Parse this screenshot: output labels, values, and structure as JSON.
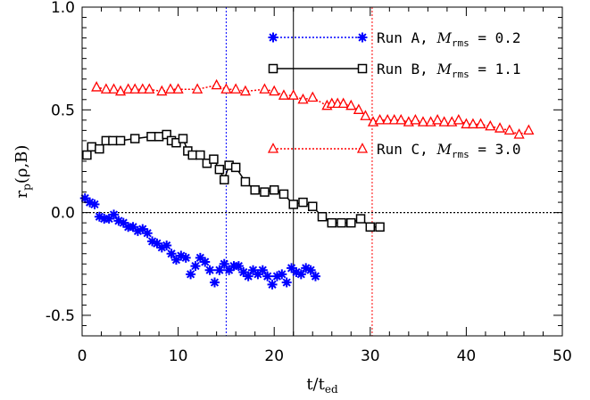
{
  "chart_data": {
    "type": "scatter",
    "title": "",
    "xlabel": {
      "base": "t/t",
      "sub": "ed"
    },
    "ylabel": {
      "base": "r",
      "sub": "p",
      "rest": "(ρ,B)"
    },
    "xlim": [
      0,
      50
    ],
    "ylim": [
      -0.6,
      1.0
    ],
    "xticks": [
      0,
      10,
      20,
      30,
      40,
      50
    ],
    "xtick_labels": [
      "0",
      "10",
      "20",
      "30",
      "40",
      "50"
    ],
    "yticks": [
      -0.5,
      0.0,
      0.5,
      1.0
    ],
    "ytick_labels": [
      "-0.5",
      "0.0",
      "0.5",
      "1.0"
    ],
    "grid": false,
    "legend_placement": "top-right",
    "zero_line": 0.0,
    "vlines": [
      {
        "x": 15.0,
        "color": "#0000ff",
        "style": "dotted"
      },
      {
        "x": 22.0,
        "color": "#000000",
        "style": "solid"
      },
      {
        "x": 30.2,
        "color": "#ff0000",
        "style": "dotted"
      }
    ],
    "series": [
      {
        "name": "Run A",
        "legend_prefix": "Run A, ",
        "legend_sym": "M",
        "legend_sub": "rms",
        "legend_value": " = 0.2",
        "color": "#0000ff",
        "marker": "asterisk",
        "line": "none",
        "x": [
          0.3,
          0.8,
          1.3,
          1.8,
          2.3,
          2.8,
          3.3,
          3.8,
          4.3,
          4.8,
          5.3,
          5.8,
          6.3,
          6.8,
          7.3,
          7.8,
          8.3,
          8.8,
          9.3,
          9.8,
          10.3,
          10.8,
          11.3,
          11.8,
          12.3,
          12.8,
          13.3,
          13.8,
          14.3,
          14.8,
          15.3,
          15.8,
          16.3,
          16.8,
          17.3,
          17.8,
          18.3,
          18.8,
          19.3,
          19.8,
          20.3,
          20.8,
          21.3,
          21.8,
          22.3,
          22.8,
          23.3,
          23.8,
          24.3
        ],
        "y": [
          0.07,
          0.05,
          0.04,
          -0.02,
          -0.03,
          -0.03,
          -0.01,
          -0.04,
          -0.05,
          -0.07,
          -0.07,
          -0.09,
          -0.08,
          -0.1,
          -0.14,
          -0.15,
          -0.17,
          -0.16,
          -0.2,
          -0.23,
          -0.21,
          -0.22,
          -0.3,
          -0.26,
          -0.22,
          -0.24,
          -0.28,
          -0.34,
          -0.28,
          -0.25,
          -0.28,
          -0.26,
          -0.26,
          -0.29,
          -0.31,
          -0.28,
          -0.3,
          -0.28,
          -0.31,
          -0.35,
          -0.31,
          -0.3,
          -0.34,
          -0.27,
          -0.29,
          -0.3,
          -0.27,
          -0.28,
          -0.31
        ]
      },
      {
        "name": "Run B",
        "legend_prefix": "Run B, ",
        "legend_sym": "M",
        "legend_sub": "rms",
        "legend_value": " = 1.1",
        "color": "#000000",
        "marker": "square",
        "line": "solid",
        "x": [
          0.5,
          1.0,
          1.8,
          2.5,
          3.2,
          4.0,
          5.5,
          7.2,
          8.0,
          8.8,
          9.3,
          9.8,
          10.5,
          11.0,
          11.5,
          12.3,
          13.0,
          13.7,
          14.3,
          14.8,
          15.3,
          16.0,
          17.0,
          18.0,
          19.0,
          20.0,
          21.0,
          22.0,
          23.0,
          24.0,
          25.0,
          26.0,
          27.0,
          28.0,
          29.0,
          30.0,
          31.0
        ],
        "y": [
          0.28,
          0.32,
          0.31,
          0.35,
          0.35,
          0.35,
          0.36,
          0.37,
          0.37,
          0.38,
          0.35,
          0.34,
          0.36,
          0.3,
          0.28,
          0.28,
          0.24,
          0.26,
          0.21,
          0.16,
          0.23,
          0.22,
          0.15,
          0.11,
          0.1,
          0.11,
          0.09,
          0.04,
          0.05,
          0.03,
          -0.02,
          -0.05,
          -0.05,
          -0.05,
          -0.03,
          -0.07,
          -0.07
        ]
      },
      {
        "name": "Run C",
        "legend_prefix": "Run C, ",
        "legend_sym": "M",
        "legend_sub": "rms",
        "legend_value": " = 3.0",
        "color": "#ff0000",
        "marker": "triangle",
        "line": "dotted",
        "x": [
          1.5,
          2.5,
          3.3,
          4.0,
          4.8,
          5.5,
          6.3,
          7.0,
          8.3,
          9.2,
          10.0,
          12.0,
          14.0,
          15.0,
          16.0,
          17.0,
          19.0,
          20.0,
          21.0,
          22.0,
          23.0,
          24.0,
          25.5,
          26.0,
          26.6,
          27.2,
          28.0,
          28.8,
          29.5,
          30.3,
          31.0,
          31.8,
          32.5,
          33.2,
          34.0,
          34.7,
          35.5,
          36.3,
          37.0,
          37.7,
          38.5,
          39.2,
          40.0,
          40.7,
          41.5,
          42.5,
          43.5,
          44.5,
          45.5,
          46.5
        ],
        "y": [
          0.61,
          0.6,
          0.6,
          0.59,
          0.6,
          0.6,
          0.6,
          0.6,
          0.59,
          0.6,
          0.6,
          0.6,
          0.62,
          0.6,
          0.6,
          0.59,
          0.6,
          0.59,
          0.57,
          0.57,
          0.55,
          0.56,
          0.52,
          0.53,
          0.53,
          0.53,
          0.52,
          0.5,
          0.47,
          0.44,
          0.45,
          0.45,
          0.45,
          0.45,
          0.44,
          0.45,
          0.44,
          0.44,
          0.45,
          0.44,
          0.44,
          0.45,
          0.43,
          0.43,
          0.43,
          0.42,
          0.41,
          0.4,
          0.38,
          0.4
        ]
      }
    ]
  }
}
